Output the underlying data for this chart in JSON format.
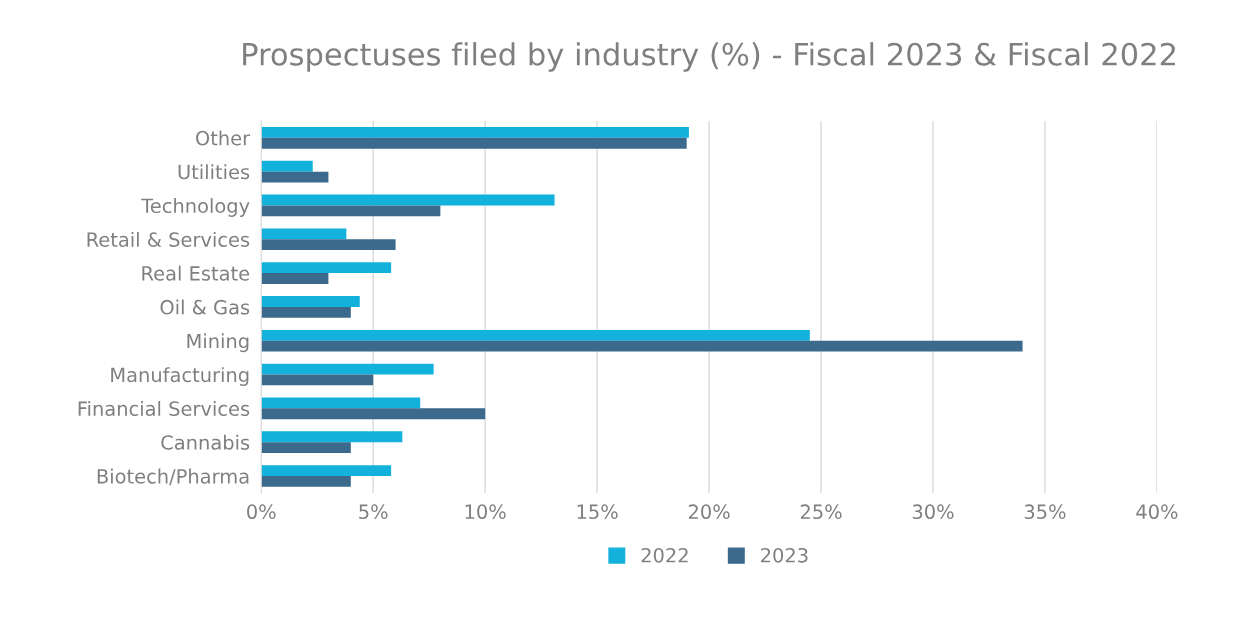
{
  "chart_data": {
    "type": "bar",
    "orientation": "horizontal",
    "title": "Prospectuses filed by industry (%) - Fiscal 2023 & Fiscal 2022",
    "categories": [
      "Other",
      "Utilities",
      "Technology",
      "Retail & Services",
      "Real Estate",
      "Oil & Gas",
      "Mining",
      "Manufacturing",
      "Financial Services",
      "Cannabis",
      "Biotech/Pharma"
    ],
    "series": [
      {
        "name": "2022",
        "color": "#12b2dc",
        "values": [
          19.1,
          2.3,
          13.1,
          3.8,
          5.8,
          4.4,
          24.5,
          7.7,
          7.1,
          6.3,
          5.8
        ]
      },
      {
        "name": "2023",
        "color": "#3b6a8c",
        "values": [
          19.0,
          3.0,
          8.0,
          6.0,
          3.0,
          4.0,
          34.0,
          5.0,
          10.0,
          4.0,
          4.0
        ]
      }
    ],
    "xlim": [
      0,
      40
    ],
    "xticks": [
      {
        "value": 0,
        "label": "0%"
      },
      {
        "value": 5,
        "label": "5%"
      },
      {
        "value": 10,
        "label": "10%"
      },
      {
        "value": 15,
        "label": "15%"
      },
      {
        "value": 20,
        "label": "20%"
      },
      {
        "value": 25,
        "label": "25%"
      },
      {
        "value": 30,
        "label": "30%"
      },
      {
        "value": 35,
        "label": "35%"
      },
      {
        "value": 40,
        "label": "40%"
      }
    ],
    "grid": "x",
    "legend": "bottom"
  }
}
